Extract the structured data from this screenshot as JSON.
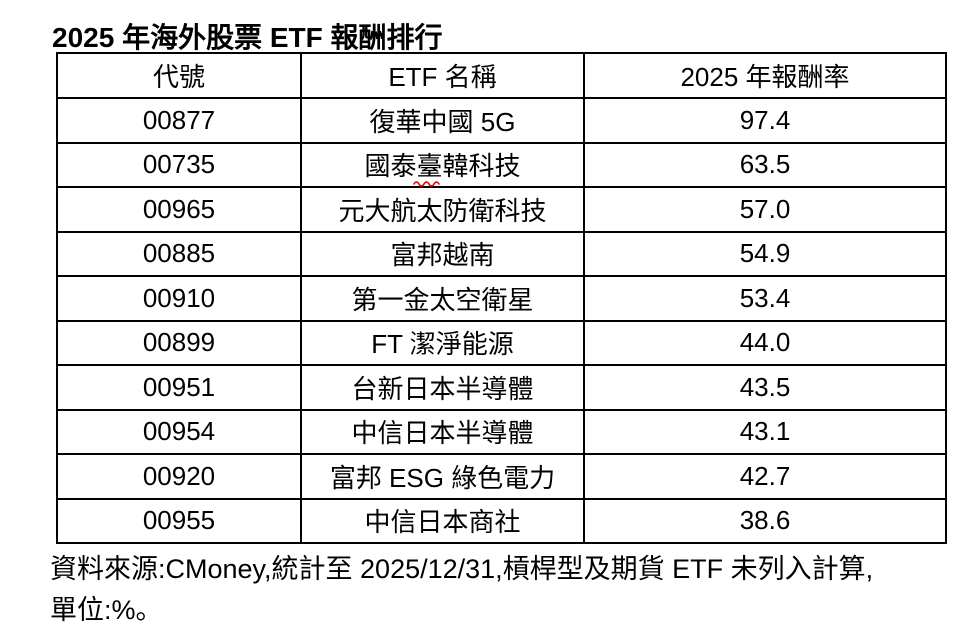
{
  "title": "2025 年海外股票 ETF 報酬排行",
  "table": {
    "columns": [
      "代號",
      "ETF 名稱",
      "2025 年報酬率"
    ],
    "rows": [
      {
        "code": "00877",
        "name": "復華中國 5G",
        "return": "97.4"
      },
      {
        "code": "00735",
        "name": "國泰臺韓科技",
        "return": "63.5"
      },
      {
        "code": "00965",
        "name": "元大航太防衛科技",
        "return": "57.0"
      },
      {
        "code": "00885",
        "name": "富邦越南",
        "return": "54.9"
      },
      {
        "code": "00910",
        "name": "第一金太空衛星",
        "return": "53.4"
      },
      {
        "code": "00899",
        "name": "FT 潔淨能源",
        "return": "44.0"
      },
      {
        "code": "00951",
        "name": "台新日本半導體",
        "return": "43.5"
      },
      {
        "code": "00954",
        "name": "中信日本半導體",
        "return": "43.1"
      },
      {
        "code": "00920",
        "name": "富邦 ESG 綠色電力",
        "return": "42.7"
      },
      {
        "code": "00955",
        "name": "中信日本商社",
        "return": "38.6"
      }
    ]
  },
  "footer": {
    "line1": "資料來源:CMoney,統計至 2025/12/31,槓桿型及期貨 ETF 未列入計算,",
    "line2": "單位:%。"
  },
  "colors": {
    "background": "#ffffff",
    "text": "#000000",
    "border": "#000000",
    "squiggle": "#e00000"
  },
  "chart_data": {
    "type": "table",
    "title": "2025 年海外股票 ETF 報酬排行",
    "columns": [
      "代號",
      "ETF 名稱",
      "2025 年報酬率"
    ],
    "categories": [
      "復華中國 5G",
      "國泰臺韓科技",
      "元大航太防衛科技",
      "富邦越南",
      "第一金太空衛星",
      "FT 潔淨能源",
      "台新日本半導體",
      "中信日本半導體",
      "富邦 ESG 綠色電力",
      "中信日本商社"
    ],
    "codes": [
      "00877",
      "00735",
      "00965",
      "00885",
      "00910",
      "00899",
      "00951",
      "00954",
      "00920",
      "00955"
    ],
    "values": [
      97.4,
      63.5,
      57.0,
      54.9,
      53.4,
      44.0,
      43.5,
      43.1,
      42.7,
      38.6
    ],
    "unit": "%"
  }
}
